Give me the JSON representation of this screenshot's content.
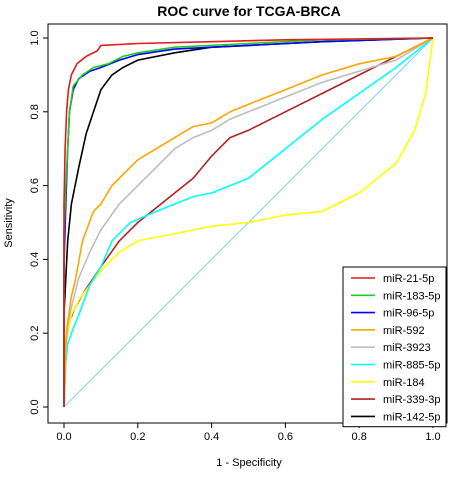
{
  "chart_data": {
    "type": "line",
    "title": "ROC curve for TCGA-BRCA",
    "xlabel": "1 - Specificity",
    "ylabel": "Sensitivity",
    "xlim": [
      0,
      1
    ],
    "ylim": [
      0,
      1
    ],
    "x_ticks": [
      "0.0",
      "0.2",
      "0.4",
      "0.6",
      "0.8",
      "1.0"
    ],
    "y_ticks": [
      "0.0",
      "0.2",
      "0.4",
      "0.6",
      "0.8",
      "1.0"
    ],
    "x_tick_values": [
      0,
      0.2,
      0.4,
      0.6,
      0.8,
      1.0
    ],
    "y_tick_values": [
      0,
      0.2,
      0.4,
      0.6,
      0.8,
      1.0
    ],
    "grid": false,
    "legend_position": "bottom-right",
    "reference_line": {
      "color": "#87CEEB",
      "points": [
        [
          0,
          0
        ],
        [
          1,
          1
        ]
      ]
    },
    "series": [
      {
        "name": "miR-21-5p",
        "color": "#E41A1C",
        "points": [
          [
            0,
            0
          ],
          [
            0,
            0.55
          ],
          [
            0.003,
            0.7
          ],
          [
            0.007,
            0.8
          ],
          [
            0.012,
            0.86
          ],
          [
            0.02,
            0.9
          ],
          [
            0.035,
            0.93
          ],
          [
            0.06,
            0.95
          ],
          [
            0.09,
            0.965
          ],
          [
            0.1,
            0.98
          ],
          [
            0.2,
            0.985
          ],
          [
            0.4,
            0.99
          ],
          [
            0.6,
            0.995
          ],
          [
            1,
            1
          ]
        ]
      },
      {
        "name": "miR-183-5p",
        "color": "#22CC22",
        "points": [
          [
            0,
            0
          ],
          [
            0,
            0.47
          ],
          [
            0.005,
            0.6
          ],
          [
            0.01,
            0.7
          ],
          [
            0.015,
            0.8
          ],
          [
            0.025,
            0.87
          ],
          [
            0.05,
            0.9
          ],
          [
            0.08,
            0.92
          ],
          [
            0.12,
            0.93
          ],
          [
            0.16,
            0.95
          ],
          [
            0.2,
            0.96
          ],
          [
            0.3,
            0.975
          ],
          [
            0.5,
            0.985
          ],
          [
            0.7,
            0.995
          ],
          [
            1,
            1
          ]
        ]
      },
      {
        "name": "miR-96-5p",
        "color": "#0000FF",
        "points": [
          [
            0,
            0
          ],
          [
            0,
            0.39
          ],
          [
            0.005,
            0.55
          ],
          [
            0.01,
            0.7
          ],
          [
            0.015,
            0.8
          ],
          [
            0.025,
            0.86
          ],
          [
            0.04,
            0.89
          ],
          [
            0.07,
            0.91
          ],
          [
            0.1,
            0.92
          ],
          [
            0.15,
            0.94
          ],
          [
            0.2,
            0.955
          ],
          [
            0.3,
            0.97
          ],
          [
            0.5,
            0.98
          ],
          [
            0.7,
            0.99
          ],
          [
            1,
            1
          ]
        ]
      },
      {
        "name": "miR-592",
        "color": "#FFA500",
        "points": [
          [
            0,
            0
          ],
          [
            0.005,
            0.18
          ],
          [
            0.01,
            0.23
          ],
          [
            0.02,
            0.3
          ],
          [
            0.03,
            0.34
          ],
          [
            0.05,
            0.45
          ],
          [
            0.08,
            0.53
          ],
          [
            0.1,
            0.55
          ],
          [
            0.13,
            0.6
          ],
          [
            0.16,
            0.63
          ],
          [
            0.2,
            0.67
          ],
          [
            0.25,
            0.7
          ],
          [
            0.3,
            0.73
          ],
          [
            0.35,
            0.76
          ],
          [
            0.4,
            0.77
          ],
          [
            0.45,
            0.8
          ],
          [
            0.5,
            0.82
          ],
          [
            0.55,
            0.84
          ],
          [
            0.6,
            0.86
          ],
          [
            0.7,
            0.9
          ],
          [
            0.8,
            0.93
          ],
          [
            0.9,
            0.95
          ],
          [
            1,
            1
          ]
        ]
      },
      {
        "name": "miR-3923",
        "color": "#BEBEBE",
        "points": [
          [
            0,
            0
          ],
          [
            0.005,
            0.15
          ],
          [
            0.01,
            0.22
          ],
          [
            0.02,
            0.27
          ],
          [
            0.04,
            0.35
          ],
          [
            0.07,
            0.42
          ],
          [
            0.1,
            0.48
          ],
          [
            0.15,
            0.55
          ],
          [
            0.2,
            0.6
          ],
          [
            0.25,
            0.65
          ],
          [
            0.3,
            0.7
          ],
          [
            0.35,
            0.73
          ],
          [
            0.4,
            0.75
          ],
          [
            0.45,
            0.78
          ],
          [
            0.5,
            0.8
          ],
          [
            0.55,
            0.82
          ],
          [
            0.6,
            0.84
          ],
          [
            0.7,
            0.88
          ],
          [
            0.8,
            0.91
          ],
          [
            0.9,
            0.94
          ],
          [
            1,
            1
          ]
        ]
      },
      {
        "name": "miR-885-5p",
        "color": "#00FFFF",
        "points": [
          [
            0,
            0
          ],
          [
            0.005,
            0.12
          ],
          [
            0.01,
            0.17
          ],
          [
            0.02,
            0.2
          ],
          [
            0.04,
            0.25
          ],
          [
            0.07,
            0.33
          ],
          [
            0.1,
            0.38
          ],
          [
            0.13,
            0.45
          ],
          [
            0.18,
            0.5
          ],
          [
            0.25,
            0.53
          ],
          [
            0.3,
            0.55
          ],
          [
            0.35,
            0.57
          ],
          [
            0.4,
            0.58
          ],
          [
            0.45,
            0.6
          ],
          [
            0.5,
            0.62
          ],
          [
            0.55,
            0.66
          ],
          [
            0.6,
            0.7
          ],
          [
            0.7,
            0.78
          ],
          [
            0.8,
            0.85
          ],
          [
            0.9,
            0.92
          ],
          [
            1,
            1
          ]
        ]
      },
      {
        "name": "miR-184",
        "color": "#FFFF00",
        "points": [
          [
            0,
            0
          ],
          [
            0.005,
            0.15
          ],
          [
            0.01,
            0.2
          ],
          [
            0.02,
            0.25
          ],
          [
            0.04,
            0.29
          ],
          [
            0.07,
            0.33
          ],
          [
            0.1,
            0.37
          ],
          [
            0.15,
            0.42
          ],
          [
            0.2,
            0.45
          ],
          [
            0.3,
            0.47
          ],
          [
            0.4,
            0.49
          ],
          [
            0.5,
            0.5
          ],
          [
            0.6,
            0.52
          ],
          [
            0.7,
            0.53
          ],
          [
            0.8,
            0.58
          ],
          [
            0.85,
            0.62
          ],
          [
            0.9,
            0.66
          ],
          [
            0.95,
            0.75
          ],
          [
            0.98,
            0.85
          ],
          [
            1,
            1
          ]
        ]
      },
      {
        "name": "miR-339-3p",
        "color": "#B22222",
        "points": [
          [
            0,
            0
          ],
          [
            0.005,
            0.15
          ],
          [
            0.01,
            0.22
          ],
          [
            0.03,
            0.27
          ],
          [
            0.06,
            0.32
          ],
          [
            0.1,
            0.38
          ],
          [
            0.15,
            0.45
          ],
          [
            0.2,
            0.5
          ],
          [
            0.25,
            0.54
          ],
          [
            0.3,
            0.58
          ],
          [
            0.35,
            0.62
          ],
          [
            0.4,
            0.68
          ],
          [
            0.45,
            0.73
          ],
          [
            0.5,
            0.75
          ],
          [
            0.6,
            0.8
          ],
          [
            0.7,
            0.85
          ],
          [
            0.8,
            0.9
          ],
          [
            0.9,
            0.95
          ],
          [
            1,
            1
          ]
        ]
      },
      {
        "name": "miR-142-5p",
        "color": "#000000",
        "points": [
          [
            0,
            0
          ],
          [
            0,
            0.25
          ],
          [
            0.005,
            0.35
          ],
          [
            0.01,
            0.45
          ],
          [
            0.02,
            0.55
          ],
          [
            0.04,
            0.65
          ],
          [
            0.06,
            0.74
          ],
          [
            0.08,
            0.8
          ],
          [
            0.1,
            0.86
          ],
          [
            0.13,
            0.9
          ],
          [
            0.16,
            0.92
          ],
          [
            0.2,
            0.94
          ],
          [
            0.3,
            0.96
          ],
          [
            0.4,
            0.975
          ],
          [
            0.5,
            0.98
          ],
          [
            0.7,
            0.99
          ],
          [
            1,
            1
          ]
        ]
      }
    ]
  }
}
